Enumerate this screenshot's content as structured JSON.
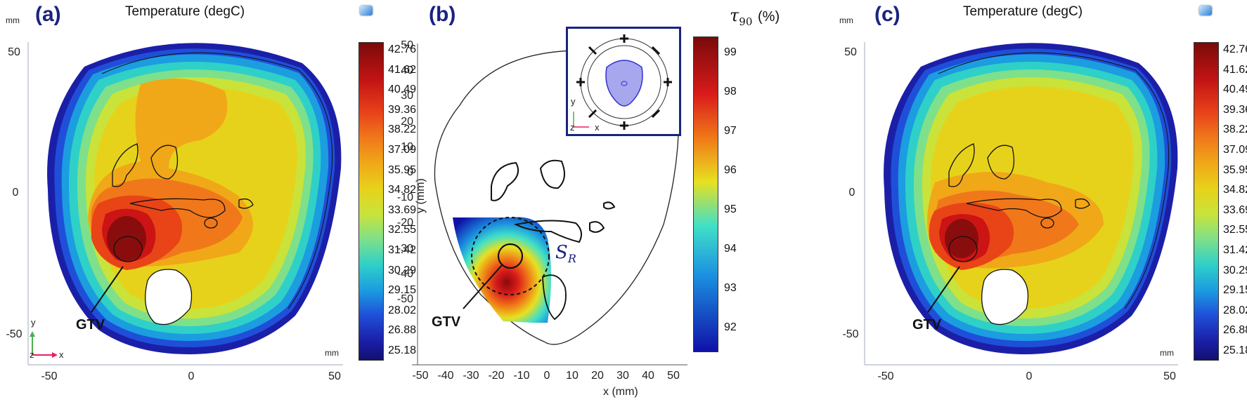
{
  "panel_a": {
    "label": "(a)",
    "title": "Temperature (degC)",
    "y_unit": "mm",
    "x_unit": "mm",
    "y_ticks": [
      "50",
      "0",
      "-50"
    ],
    "x_ticks": [
      "-50",
      "0",
      "50"
    ],
    "gtv_label": "GTV",
    "triad": {
      "y": "y",
      "z": "z",
      "x": "x"
    }
  },
  "panel_b": {
    "label": "(b)",
    "colorbar_title": "τ90 (%)",
    "colorbar_symbol": "τ",
    "colorbar_sub": "90",
    "colorbar_unit": "(%)",
    "colorbar_ticks": [
      "99",
      "98",
      "97",
      "96",
      "95",
      "94",
      "93",
      "92"
    ],
    "xlabel": "x (mm)",
    "ylabel": "y (mm)",
    "x_ticks": [
      "-50",
      "-40",
      "-30",
      "-20",
      "-10",
      "0",
      "10",
      "20",
      "30",
      "40",
      "50"
    ],
    "y_ticks": [
      "50",
      "40",
      "30",
      "20",
      "10",
      "0",
      "-10",
      "-20",
      "-30",
      "-40",
      "-50"
    ],
    "region_label": "S",
    "region_sub": "R",
    "gtv_label": "GTV",
    "inset_triad": {
      "y": "y",
      "z": "z",
      "x": "x"
    }
  },
  "panel_c": {
    "label": "(c)",
    "title": "Temperature (degC)",
    "y_unit": "mm",
    "x_unit": "mm",
    "y_ticks": [
      "50",
      "0",
      "-50"
    ],
    "x_ticks": [
      "-50",
      "0",
      "50"
    ],
    "gtv_label": "GTV"
  },
  "temperature_colorbar": [
    "42.76",
    "41.62",
    "40.49",
    "39.36",
    "38.22",
    "37.09",
    "35.95",
    "34.82",
    "33.69",
    "32.55",
    "31.42",
    "30.29",
    "29.15",
    "28.02",
    "26.88",
    "25.18"
  ]
}
